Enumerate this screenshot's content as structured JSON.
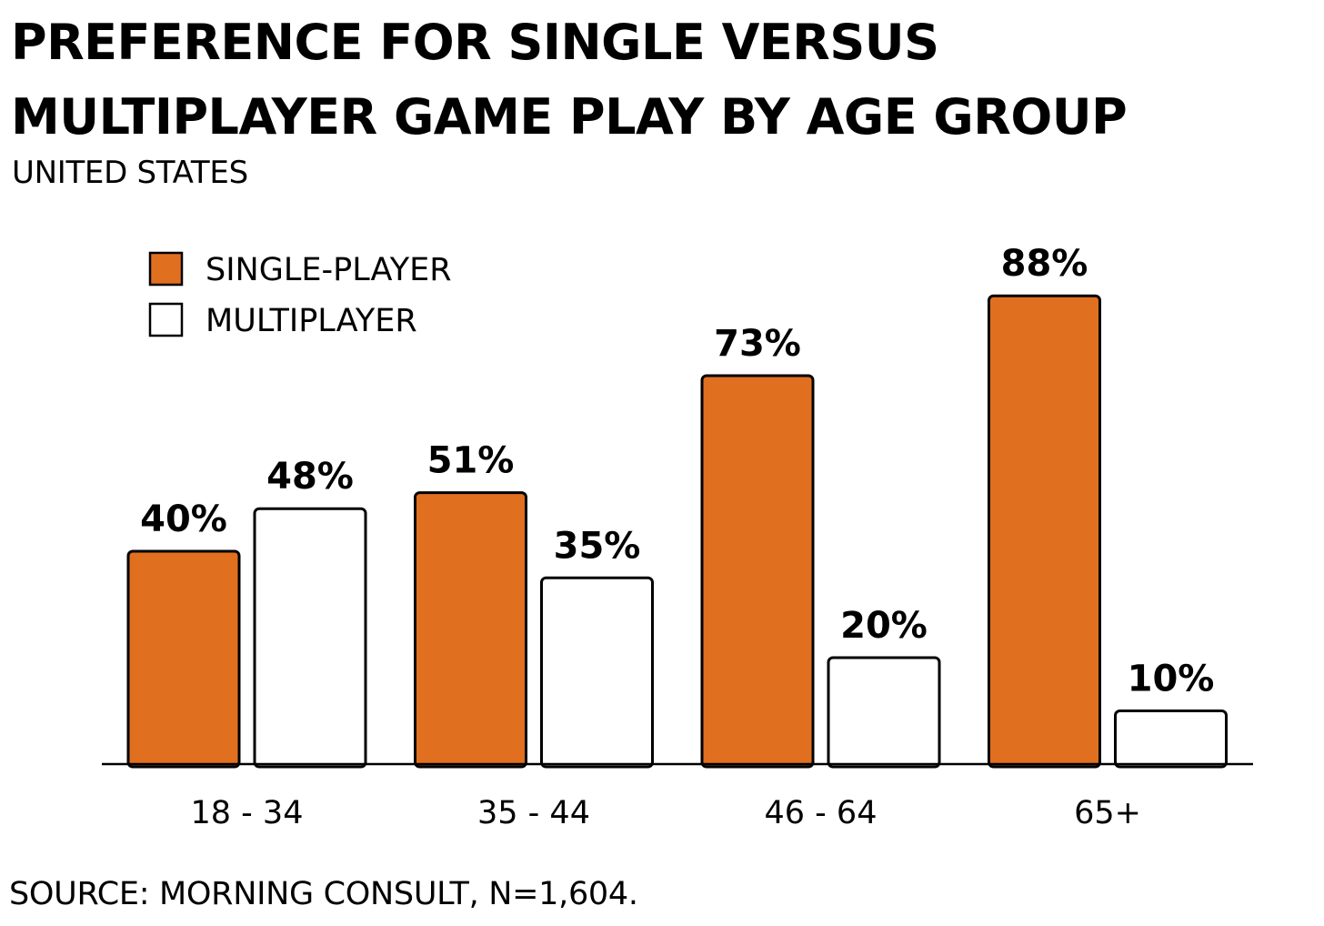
{
  "title": "PREFERENCE FOR SINGLE VERSUS MULTIPLAYER GAME PLAY BY AGE GROUP",
  "subtitle": "UNITED STATES",
  "source": "SOURCE: MORNING CONSULT, N=1,604.",
  "colors": {
    "single": "#E07020",
    "multi": "#FFFFFF",
    "stroke": "#000000"
  },
  "chart_data": {
    "type": "bar",
    "categories": [
      "18 - 34",
      "35 - 44",
      "46 - 64",
      "65+"
    ],
    "series": [
      {
        "name": "SINGLE-PLAYER",
        "values": [
          40,
          51,
          73,
          88
        ],
        "labels": [
          "40%",
          "51%",
          "73%",
          "88%"
        ]
      },
      {
        "name": "MULTIPLAYER",
        "values": [
          48,
          35,
          20,
          10
        ],
        "labels": [
          "48%",
          "35%",
          "20%",
          "10%"
        ]
      }
    ],
    "title": "PREFERENCE FOR SINGLE VERSUS MULTIPLAYER GAME PLAY BY AGE GROUP",
    "subtitle": "UNITED STATES",
    "xlabel": "",
    "ylabel": "",
    "ylim": [
      0,
      100
    ],
    "grid": false,
    "legend_position": "top-left"
  }
}
